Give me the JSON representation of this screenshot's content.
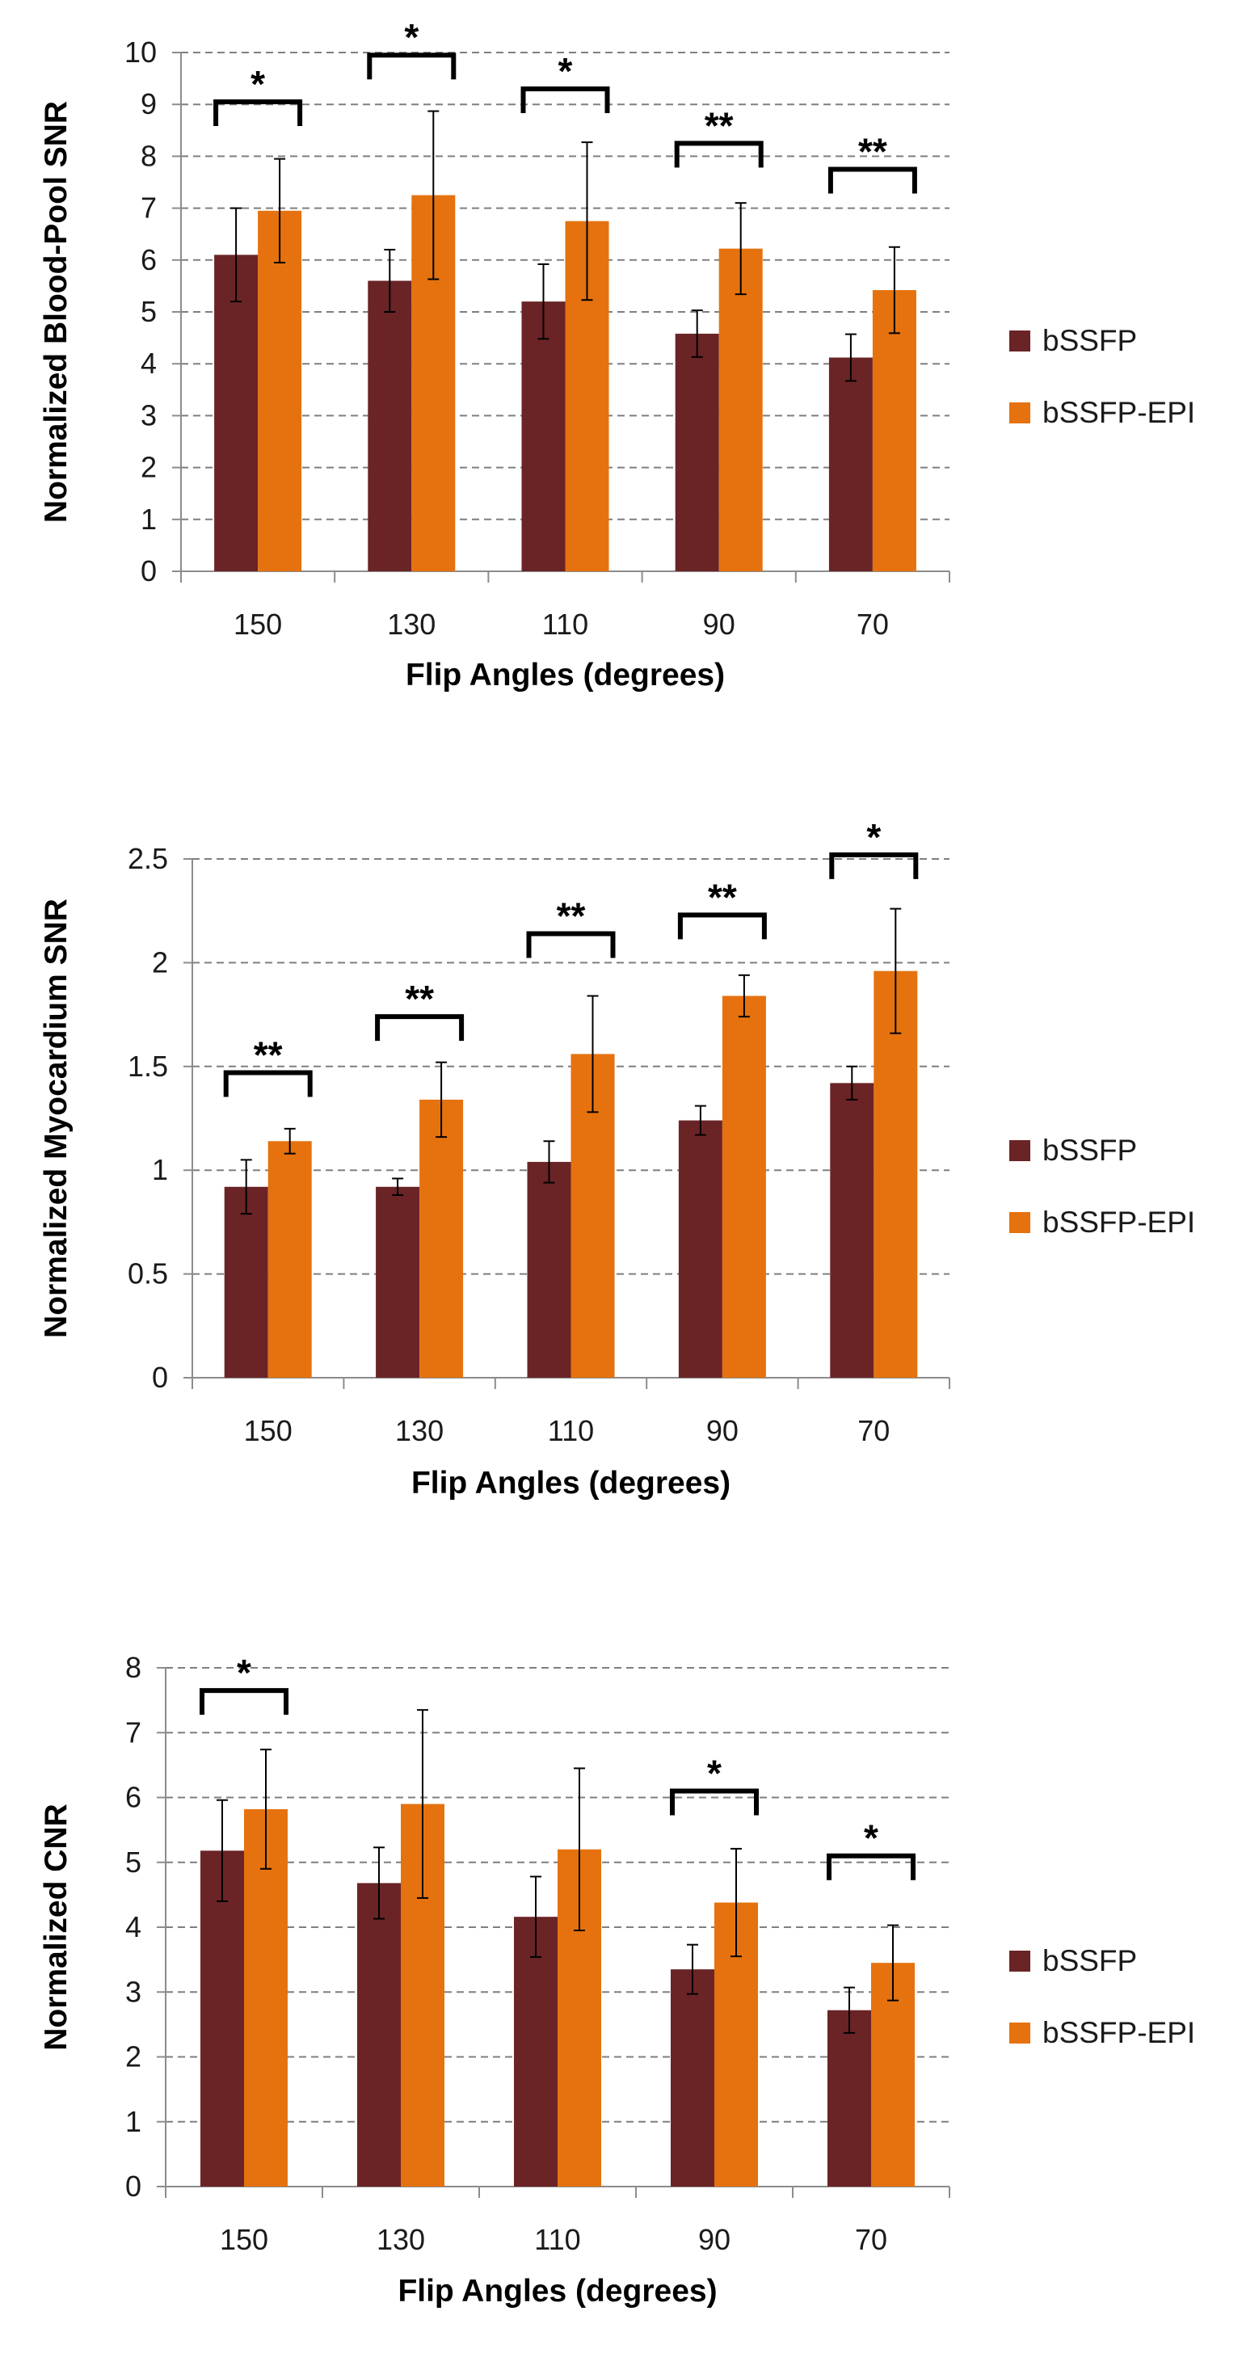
{
  "colors": {
    "bssfp": "#6a2426",
    "bssfp_epi": "#e5720f",
    "grid": "#7f7f7f",
    "axis": "#8c8c8c",
    "text": "#000000"
  },
  "chart_data": [
    {
      "type": "bar",
      "title": "",
      "xlabel": "Flip Angles (degrees)",
      "ylabel": "Normalized Blood-Pool SNR",
      "ylim": [
        0,
        10
      ],
      "yticks": [
        "0",
        "1",
        "2",
        "3",
        "4",
        "5",
        "6",
        "7",
        "8",
        "9",
        "10"
      ],
      "categories": [
        "150",
        "130",
        "110",
        "90",
        "70"
      ],
      "series": [
        {
          "name": "bSSFP",
          "values": [
            6.1,
            5.6,
            5.2,
            4.58,
            4.12
          ],
          "error": [
            0.9,
            0.6,
            0.72,
            0.45,
            0.45
          ]
        },
        {
          "name": "bSSFP-EPI",
          "values": [
            6.95,
            7.25,
            6.75,
            6.22,
            5.42
          ],
          "error": [
            1.0,
            1.62,
            1.52,
            0.88,
            0.83
          ]
        }
      ],
      "significance": [
        {
          "category": "150",
          "label": "*",
          "level": 9.05
        },
        {
          "category": "130",
          "label": "*",
          "level": 9.95
        },
        {
          "category": "110",
          "label": "*",
          "level": 9.3
        },
        {
          "category": "90",
          "label": "**",
          "level": 8.25
        },
        {
          "category": "70",
          "label": "**",
          "level": 7.75
        }
      ],
      "legend": "right"
    },
    {
      "type": "bar",
      "title": "",
      "xlabel": "Flip Angles (degrees)",
      "ylabel": "Normalized Myocardium SNR",
      "ylim": [
        0,
        2.5
      ],
      "yticks": [
        "0",
        "0.5",
        "1",
        "1.5",
        "2",
        "2.5"
      ],
      "categories": [
        "150",
        "130",
        "110",
        "90",
        "70"
      ],
      "series": [
        {
          "name": "bSSFP",
          "values": [
            0.92,
            0.92,
            1.04,
            1.24,
            1.42
          ],
          "error": [
            0.13,
            0.04,
            0.1,
            0.07,
            0.08
          ]
        },
        {
          "name": "bSSFP-EPI",
          "values": [
            1.14,
            1.34,
            1.56,
            1.84,
            1.96
          ],
          "error": [
            0.06,
            0.18,
            0.28,
            0.1,
            0.3
          ]
        }
      ],
      "significance": [
        {
          "category": "150",
          "label": "**",
          "level": 1.47
        },
        {
          "category": "130",
          "label": "**",
          "level": 1.74
        },
        {
          "category": "110",
          "label": "**",
          "level": 2.14
        },
        {
          "category": "90",
          "label": "**",
          "level": 2.23
        },
        {
          "category": "70",
          "label": "*",
          "level": 2.52
        }
      ],
      "legend": "right"
    },
    {
      "type": "bar",
      "title": "",
      "xlabel": "Flip Angles (degrees)",
      "ylabel": "Normalized CNR",
      "ylim": [
        0,
        8
      ],
      "yticks": [
        "0",
        "1",
        "2",
        "3",
        "4",
        "5",
        "6",
        "7",
        "8"
      ],
      "categories": [
        "150",
        "130",
        "110",
        "90",
        "70"
      ],
      "series": [
        {
          "name": "bSSFP",
          "values": [
            5.18,
            4.68,
            4.16,
            3.35,
            2.72
          ],
          "error": [
            0.78,
            0.55,
            0.62,
            0.38,
            0.35
          ]
        },
        {
          "name": "bSSFP-EPI",
          "values": [
            5.82,
            5.9,
            5.2,
            4.38,
            3.45
          ],
          "error": [
            0.92,
            1.45,
            1.25,
            0.83,
            0.58
          ]
        }
      ],
      "significance": [
        {
          "category": "150",
          "label": "*",
          "level": 7.65
        },
        {
          "category": "90",
          "label": "*",
          "level": 6.1
        },
        {
          "category": "70",
          "label": "*",
          "level": 5.1
        }
      ],
      "legend": "right"
    }
  ]
}
